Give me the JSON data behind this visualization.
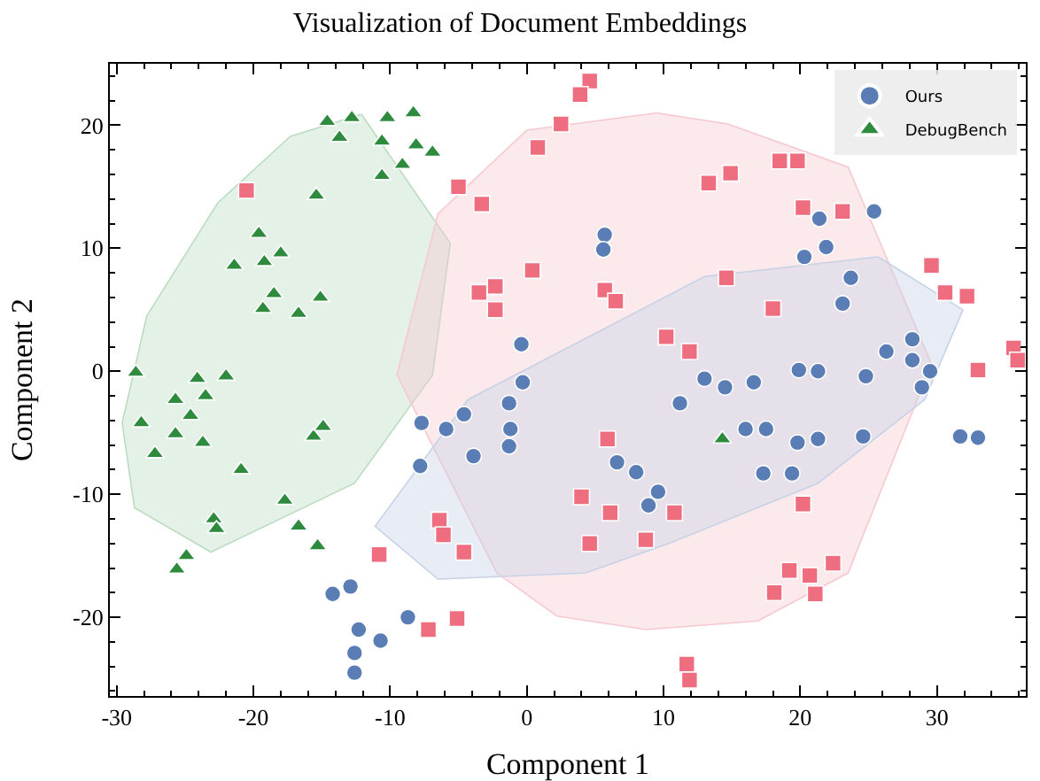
{
  "chart_data": {
    "type": "scatter",
    "title": "Visualization of Document Embeddings",
    "xlabel": "Component 1",
    "ylabel": "Component 2",
    "xlim": [
      -30.5,
      36.5
    ],
    "ylim": [
      -26.4,
      25
    ],
    "xticks": [
      -30,
      -20,
      -10,
      0,
      10,
      20,
      30
    ],
    "yticks": [
      -20,
      -10,
      0,
      10,
      20
    ],
    "grid": false,
    "legend": "top right",
    "series": [
      {
        "type": "area",
        "color": "#bcdcc2",
        "x": [
          -12.1,
          -5.6,
          -6.9,
          -12.6,
          -23.1,
          -28.7,
          -29.6,
          -27.8,
          -22.6,
          -17.3,
          -12.1
        ],
        "values": [
          20.9,
          10.4,
          -0.3,
          -9.1,
          -14.7,
          -11.1,
          -4.2,
          4.5,
          13.7,
          19.1,
          20.9
        ]
      },
      {
        "type": "area",
        "color": "#f6c9d0",
        "x": [
          9.5,
          14.7,
          23.5,
          29.6,
          23.5,
          16.9,
          8.7,
          2.2,
          -2.2,
          -9.5,
          -6.5,
          0,
          9.5
        ],
        "values": [
          21.0,
          20.1,
          16.6,
          0.6,
          -16.4,
          -20.3,
          -21.0,
          -19.9,
          -16.4,
          -0.3,
          12.8,
          19.6,
          21.0
        ]
      },
      {
        "type": "area",
        "color": "#c6d2e6",
        "x": [
          31.9,
          29.1,
          21.3,
          10.4,
          4.3,
          -6.5,
          -11.1,
          -4.3,
          13.0,
          25.7,
          31.9
        ],
        "values": [
          5.0,
          -2.3,
          -9.1,
          -14.0,
          -16.4,
          -16.9,
          -12.6,
          -2.3,
          7.7,
          9.3,
          5.0
        ]
      },
      {
        "name": "Ours",
        "color": "#5a7db5",
        "marker": "circle",
        "x": [
          25.4,
          21.4,
          21.9,
          20.3,
          23.7,
          23.1,
          26.3,
          28.2,
          28.2,
          29.5,
          28.9,
          24.8,
          21.3,
          19.9,
          16.6,
          14.5,
          13.0,
          11.2,
          16.0,
          17.5,
          19.8,
          21.3,
          24.6,
          17.3,
          19.4,
          31.7,
          33.0,
          5.7,
          5.6,
          -0.4,
          -0.3,
          -1.3,
          -1.2,
          -1.3,
          -4.6,
          -5.9,
          -7.7,
          -3.9,
          -7.8,
          6.6,
          8.0,
          9.6,
          8.9,
          -14.2,
          -12.9,
          -12.3,
          -10.7,
          -12.6,
          -12.6,
          -8.7
        ],
        "values": [
          13.0,
          12.4,
          10.1,
          9.3,
          7.6,
          5.5,
          1.6,
          2.6,
          0.9,
          0,
          -1.3,
          -0.4,
          0,
          0.1,
          -0.9,
          -1.3,
          -0.6,
          -2.6,
          -4.7,
          -4.7,
          -5.8,
          -5.5,
          -5.3,
          -8.3,
          -8.3,
          -5.3,
          -5.4,
          11.1,
          9.9,
          2.2,
          -0.9,
          -2.6,
          -4.7,
          -6.1,
          -3.5,
          -4.7,
          -4.2,
          -6.9,
          -7.7,
          -7.4,
          -8.2,
          -9.8,
          -10.9,
          -18.1,
          -17.5,
          -21.0,
          -21.9,
          -22.9,
          -24.5,
          -20.0
        ]
      },
      {
        "color": "#ee6d7f",
        "marker": "square",
        "x": [
          -20.5,
          -10.8,
          -7.2,
          -6.4,
          -6.1,
          -5.1,
          4.6,
          3.9,
          2.5,
          0.8,
          -5.0,
          -3.3,
          0.4,
          -2.3,
          -3.5,
          -2.3,
          5.7,
          6.5,
          10.2,
          11.9,
          5.9,
          4.0,
          6.1,
          10.8,
          4.6,
          8.7,
          -4.6,
          11.7,
          11.9,
          13.3,
          14.9,
          18.5,
          19.8,
          20.2,
          23.1,
          14.6,
          18.0,
          29.6,
          30.6,
          32.2,
          35.6,
          35.9,
          33.0,
          20.2,
          19.2,
          20.7,
          22.4,
          18.1,
          21.1
        ],
        "values": [
          14.7,
          -14.9,
          -21.0,
          -12.1,
          -13.3,
          -20.1,
          23.6,
          22.5,
          20.1,
          18.2,
          15.0,
          13.6,
          8.2,
          6.9,
          6.4,
          5.0,
          6.6,
          5.7,
          2.8,
          1.6,
          -5.5,
          -10.2,
          -11.5,
          -11.5,
          -14.0,
          -13.7,
          -14.7,
          -23.8,
          -25.1,
          15.3,
          16.1,
          17.1,
          17.1,
          13.3,
          13.0,
          7.6,
          5.1,
          8.6,
          6.4,
          6.1,
          1.9,
          0.9,
          0.1,
          -10.8,
          -16.2,
          -16.6,
          -15.6,
          -18.0,
          -18.1
        ]
      },
      {
        "name": "DebugBench",
        "color": "#2e8b3e",
        "marker": "triangle",
        "x": [
          -14.6,
          -12.8,
          -10.2,
          -8.3,
          -13.7,
          -10.6,
          -8.1,
          -6.9,
          -9.1,
          -10.6,
          -15.4,
          -19.6,
          -18.0,
          -21.4,
          -19.2,
          -18.5,
          -19.3,
          -16.7,
          -15.1,
          -28.6,
          -24.1,
          -22.0,
          -25.7,
          -23.5,
          -24.6,
          -28.2,
          -25.7,
          -23.7,
          -27.2,
          -15.6,
          -14.9,
          -20.9,
          -17.7,
          -22.9,
          -22.7,
          -16.7,
          -15.3,
          -24.9,
          -25.6,
          14.3
        ],
        "values": [
          20.3,
          20.6,
          20.6,
          21.0,
          19.0,
          18.7,
          18.4,
          17.8,
          16.8,
          15.9,
          14.3,
          11.2,
          9.6,
          8.6,
          8.9,
          6.3,
          5.1,
          4.7,
          6.0,
          -0.1,
          -0.6,
          -0.4,
          -2.3,
          -2.0,
          -3.6,
          -4.2,
          -5.1,
          -5.8,
          -6.7,
          -5.3,
          -4.5,
          -8.0,
          -10.5,
          -12.0,
          -12.8,
          -12.6,
          -14.2,
          -15.0,
          -16.1,
          -5.5
        ]
      }
    ]
  }
}
